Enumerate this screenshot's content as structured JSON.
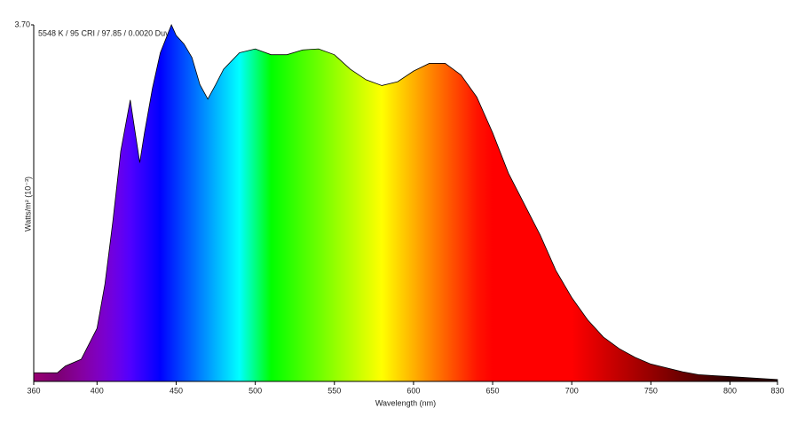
{
  "chart_data": {
    "type": "area",
    "annotation": "5548 K / 95 CRI / 97.85 / 0.0020 Duv",
    "xlabel": "Wavelength (nm)",
    "ylabel": "Watts/m² (10⁻³)",
    "x": [
      360,
      375,
      380,
      390,
      400,
      405,
      410,
      415,
      421,
      427,
      430,
      435,
      440,
      447,
      450,
      455,
      460,
      465,
      470,
      475,
      480,
      490,
      500,
      510,
      520,
      530,
      540,
      550,
      560,
      570,
      580,
      590,
      600,
      610,
      620,
      630,
      640,
      650,
      660,
      670,
      680,
      690,
      700,
      710,
      720,
      730,
      740,
      750,
      760,
      770,
      780,
      790,
      800,
      810,
      820,
      830
    ],
    "values": [
      0.09,
      0.09,
      0.16,
      0.23,
      0.55,
      1.01,
      1.66,
      2.39,
      2.92,
      2.27,
      2.58,
      3.04,
      3.41,
      3.7,
      3.59,
      3.5,
      3.36,
      3.08,
      2.93,
      3.08,
      3.24,
      3.41,
      3.45,
      3.39,
      3.39,
      3.44,
      3.45,
      3.39,
      3.24,
      3.13,
      3.07,
      3.11,
      3.22,
      3.3,
      3.3,
      3.18,
      2.95,
      2.58,
      2.16,
      1.84,
      1.52,
      1.15,
      0.87,
      0.64,
      0.46,
      0.34,
      0.25,
      0.18,
      0.14,
      0.1,
      0.07,
      0.06,
      0.05,
      0.04,
      0.03,
      0.02
    ],
    "xlim": [
      360,
      830
    ],
    "xticks": [
      360,
      400,
      450,
      500,
      550,
      600,
      650,
      700,
      750,
      800,
      830
    ],
    "ylim": [
      0,
      3.7
    ],
    "yticks": [
      {
        "value": 3.7,
        "label": "3.70"
      }
    ]
  }
}
